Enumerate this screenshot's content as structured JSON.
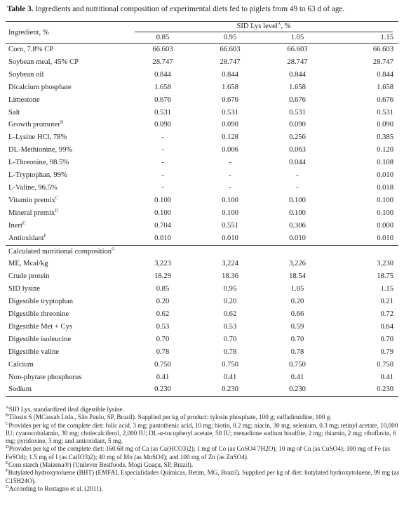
{
  "caption": {
    "label": "Table 3.",
    "text": " Ingredients and nutritional composition of experimental diets fed to piglets from 49 to 63 d of age."
  },
  "header": {
    "ingredient": "Ingredient, %",
    "group_prefix": "SID Lys level",
    "group_sup": "A",
    "group_suffix": ", %",
    "levels": [
      "0.85",
      "0.95",
      "1.05",
      "1.15"
    ]
  },
  "ingredients": [
    {
      "label": "Corn, 7.8% CP",
      "sup": "",
      "values": [
        "66.603",
        "66.603",
        "66.603",
        "66.603"
      ]
    },
    {
      "label": "Soybean meal, 45% CP",
      "sup": "",
      "values": [
        "28.747",
        "28.747",
        "28.747",
        "28.747"
      ]
    },
    {
      "label": "Soybean oil",
      "sup": "",
      "values": [
        "0.844",
        "0.844",
        "0.844",
        "0.844"
      ]
    },
    {
      "label": "Dicalcium phosphate",
      "sup": "",
      "values": [
        "1.658",
        "1.658",
        "1.658",
        "1.658"
      ]
    },
    {
      "label": "Limestone",
      "sup": "",
      "values": [
        "0.676",
        "0.676",
        "0.676",
        "0.676"
      ]
    },
    {
      "label": "Salt",
      "sup": "",
      "values": [
        "0.531",
        "0.531",
        "0.531",
        "0.531"
      ]
    },
    {
      "label": "Growth promoter",
      "sup": "B",
      "values": [
        "0.090",
        "0.090",
        "0.090",
        "0.090"
      ]
    },
    {
      "label": "L-Lysine HCl, 78%",
      "sup": "",
      "values": [
        "-",
        "0.128",
        "0.256",
        "0.385"
      ]
    },
    {
      "label": "DL-Methionine, 99%",
      "sup": "",
      "values": [
        "-",
        "0.006",
        "0.063",
        "0.120"
      ]
    },
    {
      "label": "L-Threonine, 98.5%",
      "sup": "",
      "values": [
        "-",
        "-",
        "0.044",
        "0.108"
      ]
    },
    {
      "label": "L-Tryptophan, 99%",
      "sup": "",
      "values": [
        "-",
        "-",
        "-",
        "0.010"
      ]
    },
    {
      "label": "L-Valine, 96.5%",
      "sup": "",
      "values": [
        "-",
        "-",
        "-",
        "0.018"
      ]
    },
    {
      "label": "Vitamin premix",
      "sup": "C",
      "values": [
        "0.100",
        "0.100",
        "0.100",
        "0.100"
      ]
    },
    {
      "label": "Mineral premix",
      "sup": "D",
      "values": [
        "0.100",
        "0.100",
        "0.100",
        "0.100"
      ]
    },
    {
      "label": "Inert",
      "sup": "E",
      "values": [
        "0.704",
        "0.551",
        "0.306",
        "0.000"
      ]
    },
    {
      "label": "Antioxidant",
      "sup": "F",
      "values": [
        "0.010",
        "0.010",
        "0.010",
        "0.010"
      ]
    }
  ],
  "composition_header": {
    "label": "Calculated nutritional composition",
    "sup": "G"
  },
  "composition": [
    {
      "label": "ME, Mcal/kg",
      "values": [
        "3,223",
        "3,224",
        "3,226",
        "3,230"
      ]
    },
    {
      "label": "Crude protein",
      "values": [
        "18.29",
        "18.36",
        "18.54",
        "18.75"
      ]
    },
    {
      "label": "SID lysine",
      "values": [
        "0.85",
        "0.95",
        "1.05",
        "1.15"
      ]
    },
    {
      "label": "Digestible tryptophan",
      "values": [
        "0.20",
        "0.20",
        "0.20",
        "0.21"
      ]
    },
    {
      "label": "Digestible threonine",
      "values": [
        "0.62",
        "0.62",
        "0.66",
        "0.72"
      ]
    },
    {
      "label": "Digestible Met + Cys",
      "values": [
        "0.53",
        "0.53",
        "0.59",
        "0.64"
      ]
    },
    {
      "label": "Digestible isoleucine",
      "values": [
        "0.70",
        "0.70",
        "0.70",
        "0.70"
      ]
    },
    {
      "label": "Digestible valine",
      "values": [
        "0.78",
        "0.78",
        "0.78",
        "0.79"
      ]
    },
    {
      "label": "Calcium",
      "values": [
        "0.750",
        "0.750",
        "0.750",
        "0.750"
      ]
    },
    {
      "label": "Non-phytate phosphorus",
      "values": [
        "0.41",
        "0.41",
        "0.41",
        "0.41"
      ]
    },
    {
      "label": "Sodium",
      "values": [
        "0.230",
        "0.230",
        "0.230",
        "0.230"
      ]
    }
  ],
  "footnotes": [
    {
      "mark": "A",
      "text": "SID Lys, standardized ileal digestible lysine."
    },
    {
      "mark": "B",
      "text": "Tilosin S (MCassab Ltda., São Paulo, SP, Brazil). Supplied per kg of product: tylosin phosphate, 100 g; sulfadimidine, 100 g."
    },
    {
      "mark": "C",
      "text": "Provides per kg of the complete diet: folic acid, 3 mg; pantothenic acid, 10 mg; biotin, 0.2 mg; niacin, 30 mg; selenium, 0.3 mg; retinyl acetate, 10,000 IU; cyanocobalamin, 30 mg; cholecalciferol, 2,000 IU; DL-α-tocopheryl acetate, 50 IU; menadione sodium bisulfite, 2 mg; thiamin, 2 mg; riboflavin, 6 mg; pyridoxine, 3 mg; and antioxidant, 5 mg."
    },
    {
      "mark": "D",
      "text": "Provides per kg of the complete diet: 160.68 mg of Ca (as Ca(HCO3)2); 1 mg of Co (as CoSO4 7H2O); 10 mg of Cu (as CuSO4); 100 mg of Fe (as FeSO4); 1.5 mg of I (as Ca(IO3)2); 40 mg of Mn (as MnSO4); and 100 mg of Zn (as ZnSO4)."
    },
    {
      "mark": "E",
      "text": "Corn starch (Maizena®) (Unilever Bestfoods, Mogi Guaçu, SP, Brazil)."
    },
    {
      "mark": "F",
      "text": "Butylated hydroxytoluene (BHT) (EMFAL Especialidades Químicas, Betim, MG, Brazil). Supplied per kg of diet: butylated hydroxytoluene, 99 mg (as C15H24O)."
    },
    {
      "mark": "G",
      "text": "According to Rostagno et al. (2011)."
    }
  ]
}
